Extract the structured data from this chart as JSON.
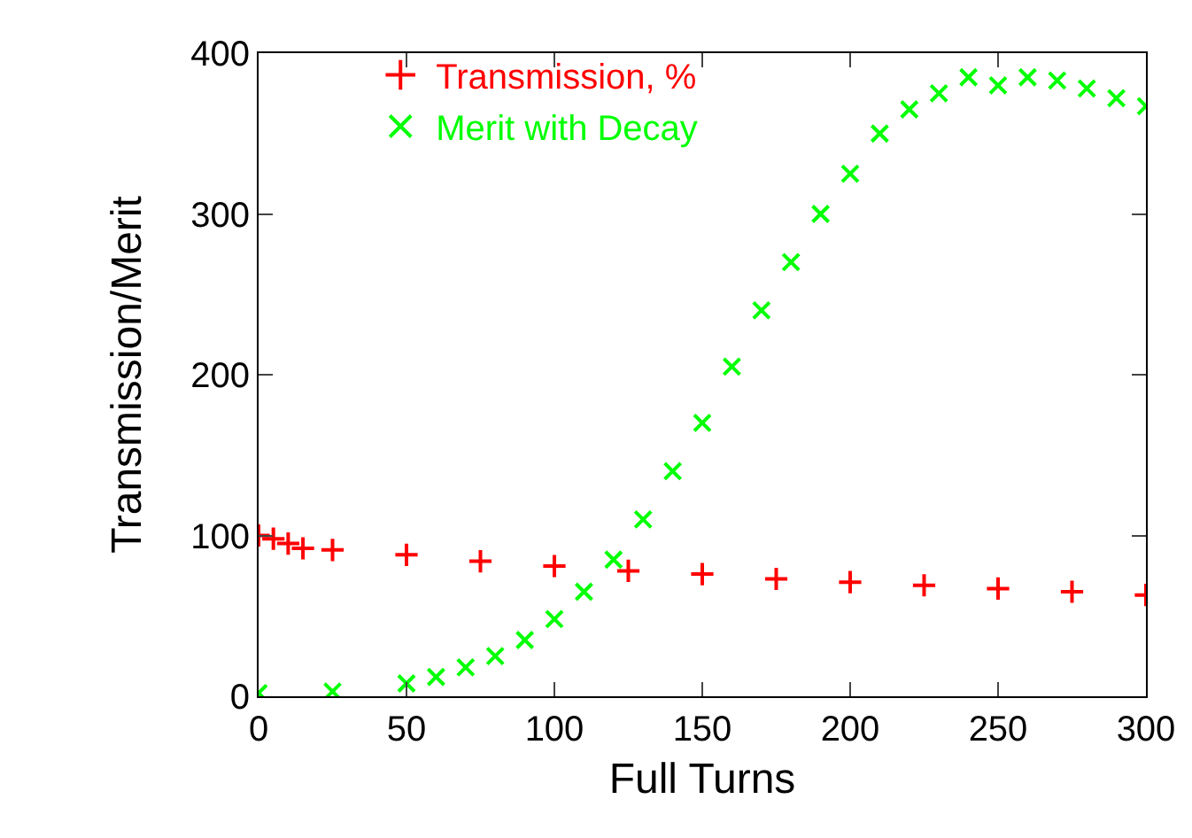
{
  "chart_data": {
    "type": "scatter",
    "xlabel": "Full Turns",
    "ylabel": "Transmission/Merit",
    "xlim": [
      0,
      300
    ],
    "xticks": [
      0,
      50,
      100,
      150,
      200,
      250,
      300
    ],
    "ylim": [
      0,
      400
    ],
    "yticks": [
      0,
      100,
      200,
      300,
      400
    ],
    "grid": false,
    "legend": "top",
    "series": [
      {
        "name": "Transmission, %",
        "color": "#ff0000",
        "marker": "cross",
        "x": [
          0,
          5,
          10,
          15,
          25,
          50,
          75,
          100,
          125,
          150,
          175,
          200,
          225,
          250,
          275,
          300
        ],
        "values": [
          100,
          98,
          95,
          92,
          91,
          88,
          84,
          81,
          78,
          76,
          73,
          71,
          69,
          67,
          65,
          63
        ]
      },
      {
        "name": "Merit with Decay",
        "color": "#00ff00",
        "marker": "x",
        "x": [
          0,
          25,
          50,
          60,
          70,
          80,
          90,
          100,
          110,
          120,
          130,
          140,
          150,
          160,
          170,
          180,
          190,
          200,
          210,
          220,
          230,
          240,
          250,
          260,
          270,
          280,
          290,
          300
        ],
        "values": [
          2,
          3,
          8,
          12,
          18,
          25,
          35,
          48,
          65,
          85,
          110,
          140,
          170,
          205,
          240,
          270,
          300,
          325,
          350,
          365,
          375,
          385,
          380,
          385,
          383,
          378,
          372,
          367
        ]
      }
    ]
  }
}
